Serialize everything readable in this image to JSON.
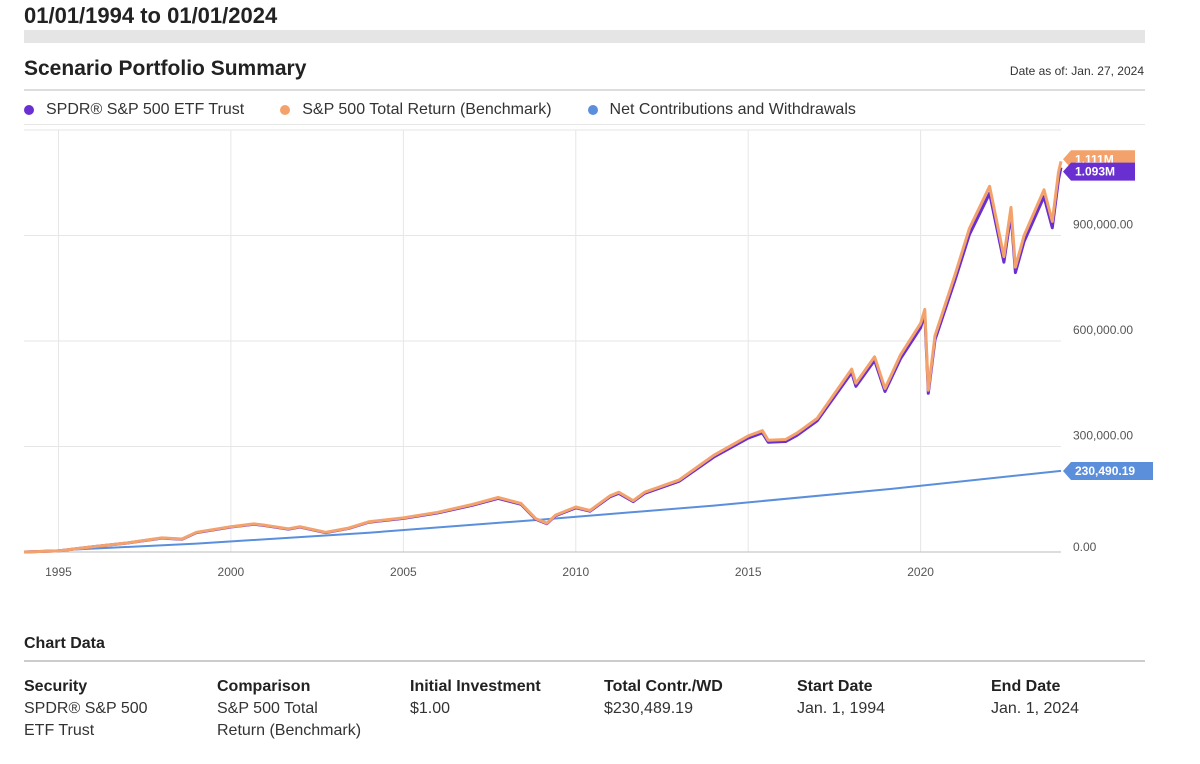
{
  "range_title": "01/01/1994 to 01/01/2024",
  "section_title": "Scenario Portfolio Summary",
  "date_as_of": "Date as of: Jan. 27, 2024",
  "legend": [
    {
      "label": "SPDR® S&P 500 ETF Trust",
      "color": "#6a2fd0"
    },
    {
      "label": "S&P 500 Total Return (Benchmark)",
      "color": "#f4a26b"
    },
    {
      "label": "Net Contributions and Withdrawals",
      "color": "#5b8fdc"
    }
  ],
  "chart_data": {
    "type": "line",
    "x_ticks": [
      "1995",
      "2000",
      "2005",
      "2010",
      "2015",
      "2020"
    ],
    "y_ticks": [
      "0.00",
      "300,000.00",
      "600,000.00",
      "900,000.00"
    ],
    "ylim": [
      0,
      1200000
    ],
    "xlim": [
      "1994-01-01",
      "2024-01-27"
    ],
    "grid": true,
    "legend_position": "top-left",
    "series": [
      {
        "name": "S&P 500 Total Return (Benchmark)",
        "color": "#f4a26b",
        "end_label": "1.111M",
        "points": [
          [
            "1994-01-01",
            0
          ],
          [
            "1995-01-01",
            3000
          ],
          [
            "1996-01-01",
            15000
          ],
          [
            "1997-01-01",
            26000
          ],
          [
            "1998-01-01",
            40000
          ],
          [
            "1998-08-01",
            37000
          ],
          [
            "1999-01-01",
            56000
          ],
          [
            "2000-01-01",
            72000
          ],
          [
            "2000-09-01",
            80000
          ],
          [
            "2001-01-01",
            76000
          ],
          [
            "2001-09-01",
            66000
          ],
          [
            "2002-01-01",
            72000
          ],
          [
            "2002-10-01",
            56000
          ],
          [
            "2003-06-01",
            68000
          ],
          [
            "2004-01-01",
            86000
          ],
          [
            "2005-01-01",
            97000
          ],
          [
            "2006-01-01",
            113000
          ],
          [
            "2007-01-01",
            135000
          ],
          [
            "2007-10-01",
            155000
          ],
          [
            "2008-06-01",
            138000
          ],
          [
            "2008-11-01",
            95000
          ],
          [
            "2009-03-01",
            82000
          ],
          [
            "2009-06-01",
            105000
          ],
          [
            "2010-01-01",
            128000
          ],
          [
            "2010-06-01",
            118000
          ],
          [
            "2011-01-01",
            160000
          ],
          [
            "2011-04-01",
            170000
          ],
          [
            "2011-09-01",
            146000
          ],
          [
            "2012-01-01",
            170000
          ],
          [
            "2013-01-01",
            205000
          ],
          [
            "2014-01-01",
            275000
          ],
          [
            "2015-01-01",
            330000
          ],
          [
            "2015-06-01",
            345000
          ],
          [
            "2015-08-01",
            318000
          ],
          [
            "2016-02-01",
            320000
          ],
          [
            "2016-06-01",
            338000
          ],
          [
            "2017-01-01",
            380000
          ],
          [
            "2018-01-01",
            520000
          ],
          [
            "2018-02-15",
            480000
          ],
          [
            "2018-09-01",
            555000
          ],
          [
            "2018-12-20",
            465000
          ],
          [
            "2019-06-01",
            560000
          ],
          [
            "2020-01-01",
            650000
          ],
          [
            "2020-02-15",
            690000
          ],
          [
            "2020-03-23",
            460000
          ],
          [
            "2020-06-01",
            615000
          ],
          [
            "2021-01-01",
            790000
          ],
          [
            "2021-06-01",
            920000
          ],
          [
            "2022-01-01",
            1040000
          ],
          [
            "2022-06-01",
            840000
          ],
          [
            "2022-08-15",
            980000
          ],
          [
            "2022-10-01",
            810000
          ],
          [
            "2023-01-01",
            900000
          ],
          [
            "2023-07-31",
            1030000
          ],
          [
            "2023-10-27",
            940000
          ],
          [
            "2024-01-01",
            1080000
          ],
          [
            "2024-01-27",
            1111000
          ]
        ]
      },
      {
        "name": "SPDR® S&P 500 ETF Trust",
        "color": "#6a2fd0",
        "end_label": "1.093M",
        "points": [
          [
            "1994-01-01",
            0
          ],
          [
            "1995-01-01",
            3000
          ],
          [
            "1996-01-01",
            14800
          ],
          [
            "1997-01-01",
            25700
          ],
          [
            "1998-01-01",
            39500
          ],
          [
            "1998-08-01",
            36500
          ],
          [
            "1999-01-01",
            55300
          ],
          [
            "2000-01-01",
            71100
          ],
          [
            "2000-09-01",
            79000
          ],
          [
            "2001-01-01",
            75000
          ],
          [
            "2001-09-01",
            65100
          ],
          [
            "2002-01-01",
            71000
          ],
          [
            "2002-10-01",
            55200
          ],
          [
            "2003-06-01",
            67000
          ],
          [
            "2004-01-01",
            84800
          ],
          [
            "2005-01-01",
            95500
          ],
          [
            "2006-01-01",
            111200
          ],
          [
            "2007-01-01",
            132800
          ],
          [
            "2007-10-01",
            152500
          ],
          [
            "2008-06-01",
            135700
          ],
          [
            "2008-11-01",
            93400
          ],
          [
            "2009-03-01",
            80600
          ],
          [
            "2009-06-01",
            103200
          ],
          [
            "2010-01-01",
            125800
          ],
          [
            "2010-06-01",
            116000
          ],
          [
            "2011-01-01",
            157200
          ],
          [
            "2011-04-01",
            167000
          ],
          [
            "2011-09-01",
            143400
          ],
          [
            "2012-01-01",
            167000
          ],
          [
            "2013-01-01",
            201300
          ],
          [
            "2014-01-01",
            270000
          ],
          [
            "2015-01-01",
            324000
          ],
          [
            "2015-06-01",
            338700
          ],
          [
            "2015-08-01",
            312200
          ],
          [
            "2016-02-01",
            314100
          ],
          [
            "2016-06-01",
            331800
          ],
          [
            "2017-01-01",
            373000
          ],
          [
            "2018-01-01",
            510400
          ],
          [
            "2018-02-15",
            471100
          ],
          [
            "2018-09-01",
            544700
          ],
          [
            "2018-12-20",
            456300
          ],
          [
            "2019-06-01",
            549500
          ],
          [
            "2020-01-01",
            637800
          ],
          [
            "2020-02-15",
            677000
          ],
          [
            "2020-03-23",
            451300
          ],
          [
            "2020-06-01",
            603400
          ],
          [
            "2021-01-01",
            775000
          ],
          [
            "2021-06-01",
            902500
          ],
          [
            "2022-01-01",
            1020000
          ],
          [
            "2022-06-01",
            824000
          ],
          [
            "2022-08-15",
            961300
          ],
          [
            "2022-10-01",
            794500
          ],
          [
            "2023-01-01",
            882800
          ],
          [
            "2023-07-31",
            1010200
          ],
          [
            "2023-10-27",
            921900
          ],
          [
            "2024-01-01",
            1059000
          ],
          [
            "2024-01-27",
            1093000
          ]
        ]
      },
      {
        "name": "Net Contributions and Withdrawals",
        "color": "#5b8fdc",
        "end_label": "230,490.19",
        "points": [
          [
            "1994-01-01",
            0
          ],
          [
            "1999-01-01",
            24000
          ],
          [
            "2004-01-01",
            55000
          ],
          [
            "2009-01-01",
            92000
          ],
          [
            "2014-01-01",
            132000
          ],
          [
            "2019-01-01",
            178000
          ],
          [
            "2024-01-27",
            230490.19
          ]
        ]
      }
    ]
  },
  "chart_data_section": {
    "title": "Chart Data",
    "columns": [
      {
        "header": "Security",
        "lines": [
          "SPDR® S&P 500",
          "ETF Trust"
        ]
      },
      {
        "header": "Comparison",
        "lines": [
          "S&P 500 Total",
          "Return (Benchmark)"
        ]
      },
      {
        "header": "Initial Investment",
        "lines": [
          "$1.00"
        ]
      },
      {
        "header": "Total Contr./WD",
        "lines": [
          "$230,489.19"
        ]
      },
      {
        "header": "Start Date",
        "lines": [
          "Jan. 1, 1994"
        ]
      },
      {
        "header": "End Date",
        "lines": [
          "Jan. 1, 2024"
        ]
      }
    ]
  }
}
